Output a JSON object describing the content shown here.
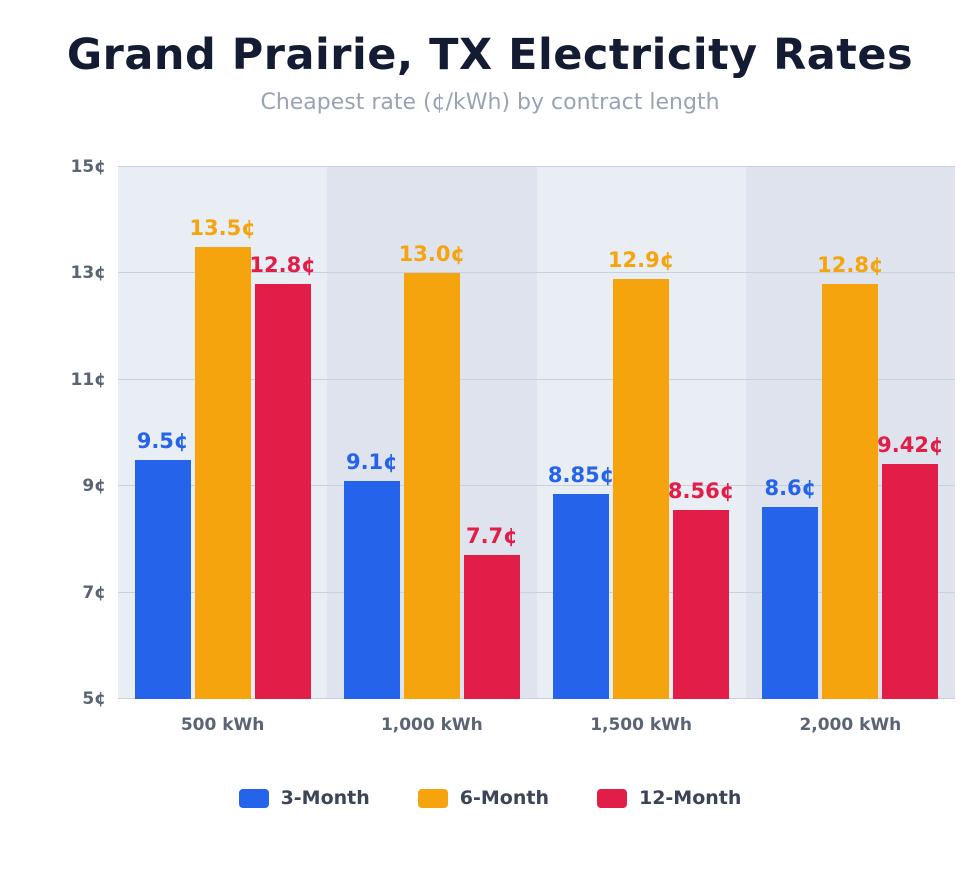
{
  "header": {
    "title": "Grand Prairie, TX Electricity Rates",
    "subtitle": "Cheapest rate (¢/kWh) by contract length"
  },
  "chart_data": {
    "type": "bar",
    "title": "Grand Prairie, TX Electricity Rates",
    "subtitle": "Cheapest rate (¢/kWh) by contract length",
    "categories": [
      "500 kWh",
      "1,000 kWh",
      "1,500 kWh",
      "2,000 kWh"
    ],
    "series": [
      {
        "name": "3-Month",
        "color": "#2563eb",
        "values": [
          9.5,
          9.1,
          8.85,
          8.6
        ],
        "labels": [
          "9.5¢",
          "9.1¢",
          "8.85¢",
          "8.6¢"
        ]
      },
      {
        "name": "6-Month",
        "color": "#f5a40e",
        "values": [
          13.5,
          13.0,
          12.9,
          12.8
        ],
        "labels": [
          "13.5¢",
          "13.0¢",
          "12.9¢",
          "12.8¢"
        ]
      },
      {
        "name": "12-Month",
        "color": "#e11d48",
        "values": [
          12.8,
          7.7,
          8.56,
          9.42
        ],
        "labels": [
          "12.8¢",
          "7.7¢",
          "8.56¢",
          "9.42¢"
        ]
      }
    ],
    "ylim": [
      5,
      15
    ],
    "yticks": [
      5,
      7,
      9,
      11,
      13,
      15
    ],
    "ytick_labels": [
      "5¢",
      "7¢",
      "9¢",
      "11¢",
      "13¢",
      "15¢"
    ],
    "grid": true,
    "legend_position": "bottom",
    "band_colors": [
      "#e9edf4",
      "#dee3ed"
    ]
  },
  "legend": {
    "items": [
      {
        "label": "3-Month",
        "color": "#2563eb"
      },
      {
        "label": "6-Month",
        "color": "#f5a40e"
      },
      {
        "label": "12-Month",
        "color": "#e11d48"
      }
    ]
  }
}
